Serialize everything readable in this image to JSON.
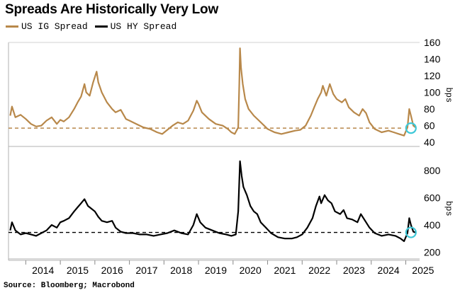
{
  "title": "Spreads Are Historically Very Low",
  "legend": [
    {
      "label": "US IG Spread",
      "color": "#b8884a"
    },
    {
      "label": "US HY Spread",
      "color": "#000000"
    }
  ],
  "source": "Source: Bloomberg; Macrobond",
  "chart_data": [
    {
      "type": "line",
      "name": "US IG Spread",
      "color": "#b8884a",
      "ylabel": "bps",
      "ylim": [
        35,
        160
      ],
      "yticks": [
        40,
        60,
        80,
        100,
        120,
        140,
        160
      ],
      "xlim": [
        2013.5,
        2025.4
      ],
      "reference_line": 57,
      "highlight": {
        "x": 2025.15,
        "y": 57
      },
      "points": [
        [
          2013.55,
          72
        ],
        [
          2013.6,
          83
        ],
        [
          2013.7,
          70
        ],
        [
          2013.85,
          73
        ],
        [
          2014.0,
          68
        ],
        [
          2014.15,
          62
        ],
        [
          2014.3,
          59
        ],
        [
          2014.45,
          60
        ],
        [
          2014.6,
          66
        ],
        [
          2014.75,
          70
        ],
        [
          2014.9,
          62
        ],
        [
          2015.0,
          67
        ],
        [
          2015.1,
          65
        ],
        [
          2015.25,
          70
        ],
        [
          2015.4,
          80
        ],
        [
          2015.5,
          88
        ],
        [
          2015.6,
          95
        ],
        [
          2015.7,
          110
        ],
        [
          2015.75,
          100
        ],
        [
          2015.85,
          96
        ],
        [
          2015.95,
          112
        ],
        [
          2016.05,
          125
        ],
        [
          2016.1,
          112
        ],
        [
          2016.2,
          100
        ],
        [
          2016.35,
          88
        ],
        [
          2016.5,
          80
        ],
        [
          2016.6,
          76
        ],
        [
          2016.75,
          79
        ],
        [
          2016.9,
          68
        ],
        [
          2017.0,
          66
        ],
        [
          2017.2,
          62
        ],
        [
          2017.4,
          58
        ],
        [
          2017.6,
          56
        ],
        [
          2017.8,
          52
        ],
        [
          2017.95,
          50
        ],
        [
          2018.1,
          55
        ],
        [
          2018.25,
          60
        ],
        [
          2018.4,
          64
        ],
        [
          2018.55,
          62
        ],
        [
          2018.7,
          66
        ],
        [
          2018.85,
          78
        ],
        [
          2018.95,
          90
        ],
        [
          2019.0,
          86
        ],
        [
          2019.1,
          76
        ],
        [
          2019.3,
          68
        ],
        [
          2019.5,
          62
        ],
        [
          2019.7,
          60
        ],
        [
          2019.85,
          56
        ],
        [
          2019.95,
          52
        ],
        [
          2020.05,
          50
        ],
        [
          2020.15,
          58
        ],
        [
          2020.18,
          110
        ],
        [
          2020.2,
          153
        ],
        [
          2020.23,
          130
        ],
        [
          2020.28,
          110
        ],
        [
          2020.35,
          92
        ],
        [
          2020.45,
          80
        ],
        [
          2020.6,
          72
        ],
        [
          2020.75,
          66
        ],
        [
          2020.9,
          60
        ],
        [
          2021.0,
          56
        ],
        [
          2021.2,
          52
        ],
        [
          2021.4,
          50
        ],
        [
          2021.6,
          52
        ],
        [
          2021.8,
          54
        ],
        [
          2021.95,
          55
        ],
        [
          2022.1,
          60
        ],
        [
          2022.25,
          72
        ],
        [
          2022.35,
          82
        ],
        [
          2022.45,
          92
        ],
        [
          2022.55,
          100
        ],
        [
          2022.6,
          108
        ],
        [
          2022.7,
          96
        ],
        [
          2022.8,
          110
        ],
        [
          2022.9,
          98
        ],
        [
          2023.0,
          92
        ],
        [
          2023.15,
          88
        ],
        [
          2023.25,
          92
        ],
        [
          2023.35,
          82
        ],
        [
          2023.5,
          76
        ],
        [
          2023.65,
          72
        ],
        [
          2023.75,
          80
        ],
        [
          2023.85,
          75
        ],
        [
          2023.95,
          64
        ],
        [
          2024.1,
          56
        ],
        [
          2024.3,
          52
        ],
        [
          2024.5,
          54
        ],
        [
          2024.65,
          52
        ],
        [
          2024.8,
          50
        ],
        [
          2024.95,
          48
        ],
        [
          2025.05,
          58
        ],
        [
          2025.1,
          80
        ],
        [
          2025.15,
          72
        ],
        [
          2025.22,
          60
        ],
        [
          2025.28,
          58
        ]
      ]
    },
    {
      "type": "line",
      "name": "US HY Spread",
      "color": "#000000",
      "ylabel": "bps",
      "ylim": [
        150,
        900
      ],
      "yticks": [
        200,
        400,
        600,
        800
      ],
      "xlim": [
        2013.5,
        2025.4
      ],
      "reference_line": 345,
      "highlight": {
        "x": 2025.15,
        "y": 345
      },
      "points": [
        [
          2013.55,
          360
        ],
        [
          2013.6,
          420
        ],
        [
          2013.7,
          360
        ],
        [
          2013.85,
          330
        ],
        [
          2014.0,
          340
        ],
        [
          2014.15,
          330
        ],
        [
          2014.3,
          320
        ],
        [
          2014.45,
          340
        ],
        [
          2014.6,
          360
        ],
        [
          2014.75,
          400
        ],
        [
          2014.9,
          380
        ],
        [
          2015.0,
          420
        ],
        [
          2015.1,
          430
        ],
        [
          2015.25,
          450
        ],
        [
          2015.4,
          500
        ],
        [
          2015.5,
          530
        ],
        [
          2015.6,
          560
        ],
        [
          2015.7,
          590
        ],
        [
          2015.8,
          540
        ],
        [
          2015.9,
          520
        ],
        [
          2016.0,
          500
        ],
        [
          2016.1,
          460
        ],
        [
          2016.2,
          430
        ],
        [
          2016.35,
          420
        ],
        [
          2016.5,
          430
        ],
        [
          2016.6,
          380
        ],
        [
          2016.75,
          350
        ],
        [
          2016.9,
          340
        ],
        [
          2017.1,
          340
        ],
        [
          2017.3,
          330
        ],
        [
          2017.5,
          330
        ],
        [
          2017.7,
          320
        ],
        [
          2017.9,
          330
        ],
        [
          2018.1,
          340
        ],
        [
          2018.3,
          360
        ],
        [
          2018.5,
          340
        ],
        [
          2018.7,
          330
        ],
        [
          2018.85,
          400
        ],
        [
          2018.95,
          480
        ],
        [
          2019.05,
          420
        ],
        [
          2019.2,
          380
        ],
        [
          2019.4,
          360
        ],
        [
          2019.6,
          340
        ],
        [
          2019.8,
          330
        ],
        [
          2019.95,
          320
        ],
        [
          2020.08,
          330
        ],
        [
          2020.15,
          500
        ],
        [
          2020.2,
          870
        ],
        [
          2020.25,
          760
        ],
        [
          2020.3,
          680
        ],
        [
          2020.4,
          620
        ],
        [
          2020.5,
          540
        ],
        [
          2020.6,
          500
        ],
        [
          2020.7,
          480
        ],
        [
          2020.8,
          420
        ],
        [
          2020.95,
          380
        ],
        [
          2021.1,
          340
        ],
        [
          2021.3,
          310
        ],
        [
          2021.5,
          300
        ],
        [
          2021.7,
          300
        ],
        [
          2021.85,
          310
        ],
        [
          2022.0,
          330
        ],
        [
          2022.15,
          380
        ],
        [
          2022.3,
          450
        ],
        [
          2022.4,
          540
        ],
        [
          2022.5,
          610
        ],
        [
          2022.55,
          560
        ],
        [
          2022.65,
          620
        ],
        [
          2022.75,
          580
        ],
        [
          2022.85,
          560
        ],
        [
          2022.95,
          500
        ],
        [
          2023.1,
          480
        ],
        [
          2023.2,
          510
        ],
        [
          2023.3,
          450
        ],
        [
          2023.45,
          440
        ],
        [
          2023.6,
          420
        ],
        [
          2023.7,
          480
        ],
        [
          2023.8,
          440
        ],
        [
          2023.95,
          380
        ],
        [
          2024.1,
          340
        ],
        [
          2024.3,
          320
        ],
        [
          2024.5,
          330
        ],
        [
          2024.7,
          320
        ],
        [
          2024.85,
          300
        ],
        [
          2024.95,
          280
        ],
        [
          2025.05,
          340
        ],
        [
          2025.1,
          450
        ],
        [
          2025.15,
          400
        ],
        [
          2025.22,
          350
        ],
        [
          2025.28,
          345
        ]
      ]
    }
  ],
  "x_axis": {
    "ticks": [
      "2014",
      "2015",
      "2016",
      "2017",
      "2018",
      "2019",
      "2020",
      "2021",
      "2022",
      "2023",
      "2024",
      "2025"
    ]
  }
}
